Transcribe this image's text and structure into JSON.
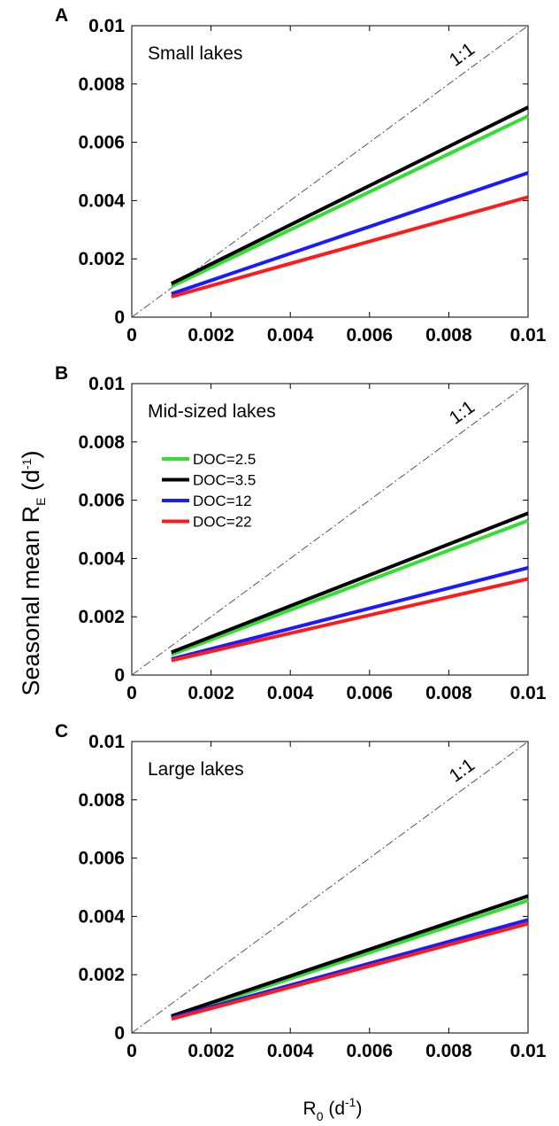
{
  "chart_data": {
    "type": "line",
    "ylabel": {
      "main": "Seasonal mean R",
      "sub": "E",
      "unit_open": " (d",
      "sup": "-1",
      "unit_close": ")"
    },
    "xlabel": {
      "main": "R",
      "sub": "0",
      "unit_open": " (d",
      "sup": "-1",
      "unit_close": ")"
    },
    "xlim": [
      0,
      0.01
    ],
    "ylim": [
      0,
      0.01
    ],
    "xticks": [
      "0",
      "0.002",
      "0.004",
      "0.006",
      "0.008",
      "0.01"
    ],
    "yticks": [
      "0",
      "0.002",
      "0.004",
      "0.006",
      "0.008",
      "0.01"
    ],
    "reference_line": {
      "label": "1:1",
      "color": "#555555"
    },
    "legend": {
      "panel": 1,
      "entries": [
        {
          "label": "DOC=2.5",
          "color": "#33dd33"
        },
        {
          "label": "DOC=3.5",
          "color": "#000000"
        },
        {
          "label": "DOC=12",
          "color": "#1a1aff"
        },
        {
          "label": "DOC=22",
          "color": "#ff1a1a"
        }
      ]
    },
    "panels": [
      {
        "label": "A",
        "title": "Small lakes",
        "series": [
          {
            "color": "#33dd33",
            "x": [
              0.001,
              0.01
            ],
            "y": [
              0.00105,
              0.0069
            ]
          },
          {
            "color": "#000000",
            "x": [
              0.001,
              0.01
            ],
            "y": [
              0.00115,
              0.0072
            ]
          },
          {
            "color": "#1a1aff",
            "x": [
              0.001,
              0.01
            ],
            "y": [
              0.0008,
              0.00495
            ]
          },
          {
            "color": "#ff1a1a",
            "x": [
              0.001,
              0.01
            ],
            "y": [
              0.0007,
              0.00412
            ]
          }
        ]
      },
      {
        "label": "B",
        "title": "Mid-sized lakes",
        "series": [
          {
            "color": "#33dd33",
            "x": [
              0.001,
              0.01
            ],
            "y": [
              0.0007,
              0.0053
            ]
          },
          {
            "color": "#000000",
            "x": [
              0.001,
              0.01
            ],
            "y": [
              0.00078,
              0.00555
            ]
          },
          {
            "color": "#1a1aff",
            "x": [
              0.001,
              0.01
            ],
            "y": [
              0.00055,
              0.00368
            ]
          },
          {
            "color": "#ff1a1a",
            "x": [
              0.001,
              0.01
            ],
            "y": [
              0.0005,
              0.0033
            ]
          }
        ]
      },
      {
        "label": "C",
        "title": "Large lakes",
        "series": [
          {
            "color": "#33dd33",
            "x": [
              0.001,
              0.01
            ],
            "y": [
              0.00052,
              0.00455
            ]
          },
          {
            "color": "#000000",
            "x": [
              0.001,
              0.01
            ],
            "y": [
              0.00058,
              0.0047
            ]
          },
          {
            "color": "#1a1aff",
            "x": [
              0.001,
              0.01
            ],
            "y": [
              0.00052,
              0.00388
            ]
          },
          {
            "color": "#ff1a1a",
            "x": [
              0.001,
              0.01
            ],
            "y": [
              0.00048,
              0.00375
            ]
          }
        ]
      }
    ]
  }
}
